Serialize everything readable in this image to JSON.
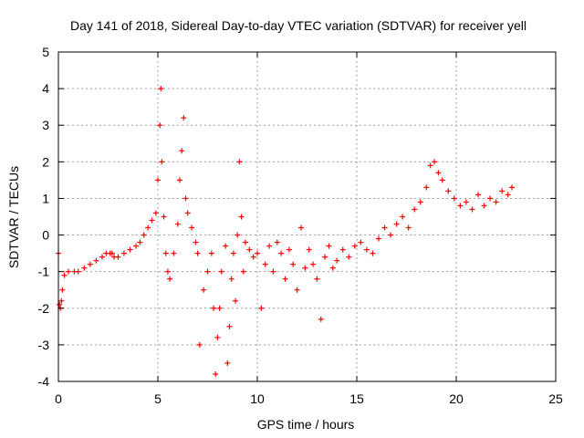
{
  "chart_data": {
    "type": "scatter",
    "title": "Day 141 of 2018, Sidereal Day-to-day VTEC variation (SDTVAR) for receiver yell",
    "xlabel": "GPS time / hours",
    "ylabel": "SDTVAR / TECUs",
    "xlim": [
      0,
      25
    ],
    "ylim": [
      -4,
      5
    ],
    "xticks": [
      "0",
      "5",
      "10",
      "15",
      "20",
      "25"
    ],
    "yticks": [
      "-4",
      "-3",
      "-2",
      "-1",
      "0",
      "1",
      "2",
      "3",
      "4",
      "5"
    ],
    "grid": true,
    "marker": "plus",
    "color": "#ff0000",
    "series": [
      {
        "name": "SDTVAR",
        "x": [
          0.0,
          0.05,
          0.1,
          0.15,
          0.2,
          0.3,
          0.5,
          0.8,
          1.0,
          1.3,
          1.6,
          1.9,
          2.2,
          2.4,
          2.6,
          2.7,
          2.8,
          3.0,
          3.3,
          3.6,
          3.9,
          4.1,
          4.3,
          4.5,
          4.7,
          4.9,
          5.0,
          5.1,
          5.15,
          5.2,
          5.3,
          5.4,
          5.5,
          5.6,
          5.8,
          6.0,
          6.1,
          6.2,
          6.3,
          6.4,
          6.5,
          6.7,
          6.9,
          7.0,
          7.1,
          7.3,
          7.5,
          7.7,
          7.8,
          7.9,
          8.0,
          8.1,
          8.2,
          8.4,
          8.5,
          8.6,
          8.7,
          8.8,
          8.9,
          9.0,
          9.1,
          9.2,
          9.3,
          9.4,
          9.6,
          9.8,
          10.0,
          10.2,
          10.4,
          10.6,
          10.8,
          11.0,
          11.2,
          11.4,
          11.6,
          11.8,
          12.0,
          12.2,
          12.4,
          12.6,
          12.8,
          13.0,
          13.2,
          13.4,
          13.6,
          13.8,
          14.0,
          14.3,
          14.6,
          14.9,
          15.2,
          15.5,
          15.8,
          16.1,
          16.4,
          16.7,
          17.0,
          17.3,
          17.6,
          17.9,
          18.2,
          18.5,
          18.7,
          18.9,
          19.1,
          19.3,
          19.6,
          19.9,
          20.2,
          20.5,
          20.8,
          21.1,
          21.4,
          21.7,
          22.0,
          22.3,
          22.6,
          22.8
        ],
        "y": [
          -0.5,
          -1.9,
          -2.0,
          -1.8,
          -1.5,
          -1.1,
          -1.0,
          -1.0,
          -1.0,
          -0.9,
          -0.8,
          -0.7,
          -0.6,
          -0.5,
          -0.5,
          -0.5,
          -0.6,
          -0.6,
          -0.5,
          -0.4,
          -0.3,
          -0.2,
          0.0,
          0.2,
          0.4,
          0.6,
          1.5,
          3.0,
          4.0,
          2.0,
          0.5,
          -0.5,
          -1.0,
          -1.2,
          -0.5,
          0.3,
          1.5,
          2.3,
          3.2,
          1.0,
          0.6,
          0.2,
          -0.2,
          -0.5,
          -3.0,
          -1.5,
          -1.0,
          -0.5,
          -2.0,
          -3.8,
          -2.8,
          -2.0,
          -1.0,
          -0.3,
          -3.5,
          -2.5,
          -1.2,
          -0.5,
          -1.8,
          0.0,
          2.0,
          0.5,
          -1.0,
          -0.2,
          -0.4,
          -0.6,
          -0.5,
          -2.0,
          -0.8,
          -0.3,
          -1.0,
          -0.2,
          -0.5,
          -1.2,
          -0.4,
          -0.8,
          -1.5,
          0.2,
          -0.9,
          -0.4,
          -0.8,
          -1.2,
          -2.3,
          -0.6,
          -0.3,
          -0.9,
          -0.7,
          -0.4,
          -0.6,
          -0.3,
          -0.2,
          -0.4,
          -0.5,
          -0.1,
          0.2,
          0.0,
          0.3,
          0.5,
          0.2,
          0.7,
          0.9,
          1.3,
          1.9,
          2.0,
          1.7,
          1.5,
          1.2,
          1.0,
          0.8,
          0.9,
          0.7,
          1.1,
          0.8,
          1.0,
          0.9,
          1.2,
          1.1,
          1.3
        ]
      }
    ]
  }
}
